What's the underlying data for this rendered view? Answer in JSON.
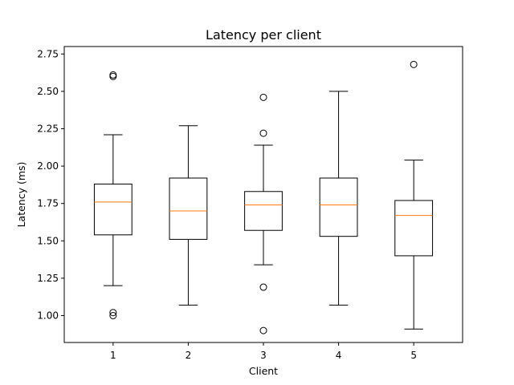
{
  "chart_data": {
    "type": "box",
    "title": "Latency per client",
    "xlabel": "Client",
    "ylabel": "Latency (ms)",
    "categories": [
      "1",
      "2",
      "3",
      "4",
      "5"
    ],
    "ylim": [
      0.82,
      2.8
    ],
    "yticks": [
      1.0,
      1.25,
      1.5,
      1.75,
      2.0,
      2.25,
      2.5,
      2.75
    ],
    "ytick_labels": [
      "1.00",
      "1.25",
      "1.50",
      "1.75",
      "2.00",
      "2.25",
      "2.50",
      "2.75"
    ],
    "grid": false,
    "box_color": "#000000",
    "median_color": "#ff7f0e",
    "boxes": [
      {
        "label": "1",
        "whisker_low": 1.2,
        "q1": 1.54,
        "median": 1.76,
        "q3": 1.88,
        "whisker_high": 2.21,
        "fliers": [
          2.61,
          2.6,
          1.02,
          1.0
        ]
      },
      {
        "label": "2",
        "whisker_low": 1.07,
        "q1": 1.51,
        "median": 1.7,
        "q3": 1.92,
        "whisker_high": 2.27,
        "fliers": []
      },
      {
        "label": "3",
        "whisker_low": 1.34,
        "q1": 1.57,
        "median": 1.74,
        "q3": 1.83,
        "whisker_high": 2.14,
        "fliers": [
          2.46,
          2.22,
          1.19,
          0.9
        ]
      },
      {
        "label": "4",
        "whisker_low": 1.07,
        "q1": 1.53,
        "median": 1.74,
        "q3": 1.92,
        "whisker_high": 2.5,
        "fliers": []
      },
      {
        "label": "5",
        "whisker_low": 0.91,
        "q1": 1.4,
        "median": 1.67,
        "q3": 1.77,
        "whisker_high": 2.04,
        "fliers": [
          2.68
        ]
      }
    ]
  }
}
